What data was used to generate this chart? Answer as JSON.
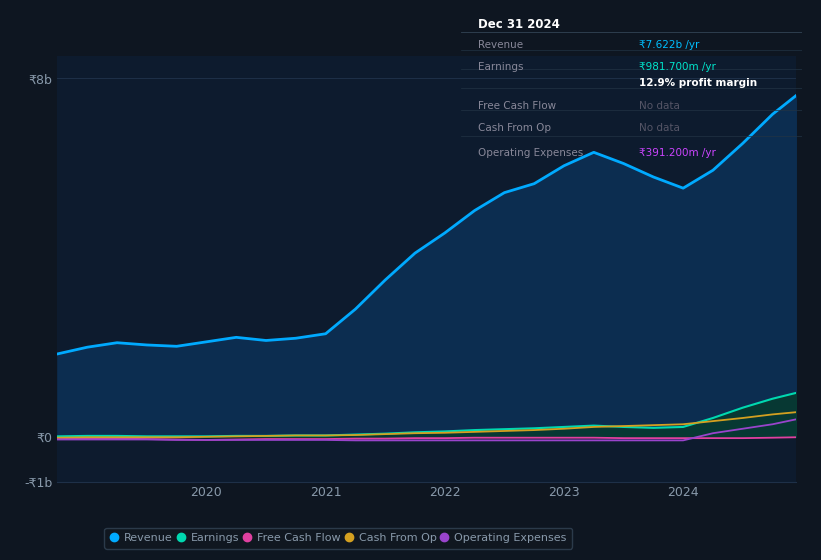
{
  "bg_color": "#0e1621",
  "plot_bg_color": "#0d1b2e",
  "grid_color": "#1e3048",
  "text_color": "#8899aa",
  "title_text": "Dec 31 2024",
  "tooltip_rows": [
    {
      "label": "Revenue",
      "value": "₹7.622b /yr",
      "label_color": "#888899",
      "value_color": "#00bfff"
    },
    {
      "label": "Earnings",
      "value": "₹981.700m /yr",
      "label_color": "#888899",
      "value_color": "#00e5cc"
    },
    {
      "label": "",
      "value": "12.9% profit margin",
      "label_color": "#888899",
      "value_color": "#ffffff"
    },
    {
      "label": "Free Cash Flow",
      "value": "No data",
      "label_color": "#888899",
      "value_color": "#555566"
    },
    {
      "label": "Cash From Op",
      "value": "No data",
      "label_color": "#888899",
      "value_color": "#555566"
    },
    {
      "label": "Operating Expenses",
      "value": "₹391.200m /yr",
      "label_color": "#888899",
      "value_color": "#cc44ff"
    }
  ],
  "years": [
    2018.75,
    2019.0,
    2019.25,
    2019.5,
    2019.75,
    2020.0,
    2020.25,
    2020.5,
    2020.75,
    2021.0,
    2021.25,
    2021.5,
    2021.75,
    2022.0,
    2022.25,
    2022.5,
    2022.75,
    2023.0,
    2023.25,
    2023.5,
    2023.75,
    2024.0,
    2024.25,
    2024.5,
    2024.75,
    2024.95
  ],
  "revenue": [
    1.85,
    2.0,
    2.1,
    2.05,
    2.02,
    2.12,
    2.22,
    2.15,
    2.2,
    2.3,
    2.85,
    3.5,
    4.1,
    4.55,
    5.05,
    5.45,
    5.65,
    6.05,
    6.35,
    6.1,
    5.8,
    5.55,
    5.95,
    6.55,
    7.2,
    7.622
  ],
  "earnings": [
    0.01,
    0.02,
    0.02,
    0.01,
    0.01,
    0.01,
    0.02,
    0.02,
    0.03,
    0.03,
    0.05,
    0.07,
    0.1,
    0.12,
    0.15,
    0.17,
    0.19,
    0.22,
    0.25,
    0.22,
    0.2,
    0.22,
    0.42,
    0.65,
    0.85,
    0.9817
  ],
  "free_cash_flow": [
    -0.05,
    -0.04,
    -0.04,
    -0.05,
    -0.06,
    -0.07,
    -0.06,
    -0.05,
    -0.05,
    -0.05,
    -0.04,
    -0.04,
    -0.03,
    -0.03,
    -0.02,
    -0.02,
    -0.02,
    -0.02,
    -0.02,
    -0.03,
    -0.03,
    -0.03,
    -0.03,
    -0.03,
    -0.02,
    -0.01
  ],
  "cash_from_op": [
    -0.02,
    -0.01,
    -0.01,
    -0.01,
    -0.01,
    0.0,
    0.01,
    0.02,
    0.03,
    0.03,
    0.04,
    0.06,
    0.08,
    0.09,
    0.11,
    0.13,
    0.15,
    0.18,
    0.22,
    0.24,
    0.26,
    0.28,
    0.35,
    0.42,
    0.5,
    0.55
  ],
  "operating_expenses": [
    -0.06,
    -0.06,
    -0.06,
    -0.06,
    -0.07,
    -0.07,
    -0.07,
    -0.07,
    -0.07,
    -0.07,
    -0.08,
    -0.08,
    -0.08,
    -0.08,
    -0.08,
    -0.08,
    -0.08,
    -0.08,
    -0.08,
    -0.08,
    -0.08,
    -0.08,
    0.08,
    0.18,
    0.28,
    0.3912
  ],
  "revenue_color": "#00aaff",
  "revenue_fill": "#0c2d50",
  "earnings_color": "#00d8b0",
  "earnings_fill": "#073a30",
  "free_cash_flow_color": "#e040a0",
  "cash_from_op_color": "#d4a020",
  "operating_expenses_color": "#9944cc",
  "ylim_min": -1.0,
  "ylim_max": 8.5,
  "ytick_vals": [
    -1.0,
    0.0,
    8.0
  ],
  "ytick_labels": [
    "-₹1b",
    "₹0",
    "₹8b"
  ],
  "xtick_vals": [
    2020,
    2021,
    2022,
    2023,
    2024
  ],
  "legend": [
    {
      "label": "Revenue",
      "color": "#00aaff"
    },
    {
      "label": "Earnings",
      "color": "#00d8b0"
    },
    {
      "label": "Free Cash Flow",
      "color": "#e040a0"
    },
    {
      "label": "Cash From Op",
      "color": "#d4a020"
    },
    {
      "label": "Operating Expenses",
      "color": "#9944cc"
    }
  ]
}
